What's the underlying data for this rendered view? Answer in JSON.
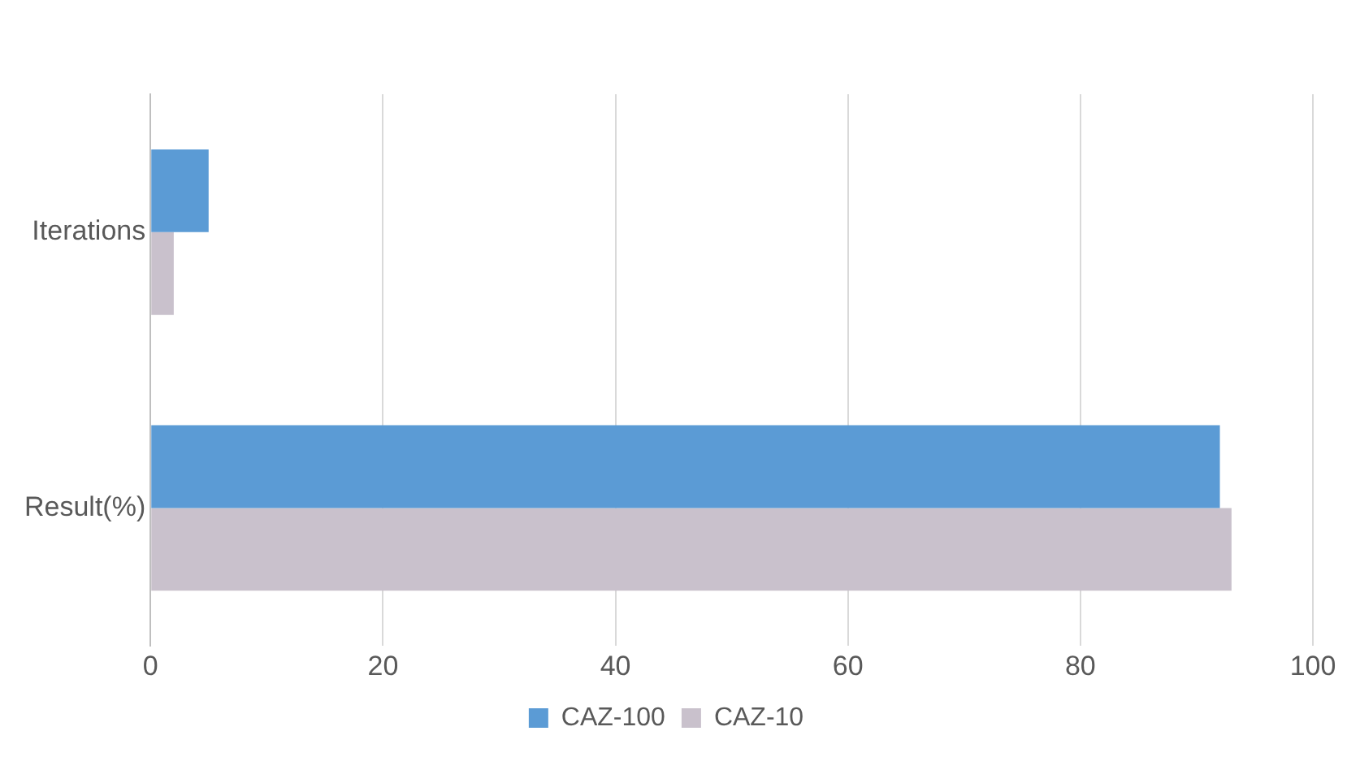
{
  "chart_data": {
    "type": "bar",
    "orientation": "horizontal",
    "categories": [
      "Iterations",
      "Result(%)"
    ],
    "series": [
      {
        "name": "CAZ-100",
        "color": "#5b9bd5",
        "values": [
          5,
          92
        ]
      },
      {
        "name": "CAZ-10",
        "color": "#c9c1cc",
        "values": [
          2,
          93
        ]
      }
    ],
    "xlim": [
      0,
      100
    ],
    "xticks": [
      0,
      20,
      40,
      60,
      80,
      100
    ],
    "grid": "x",
    "legend": "bottom"
  }
}
